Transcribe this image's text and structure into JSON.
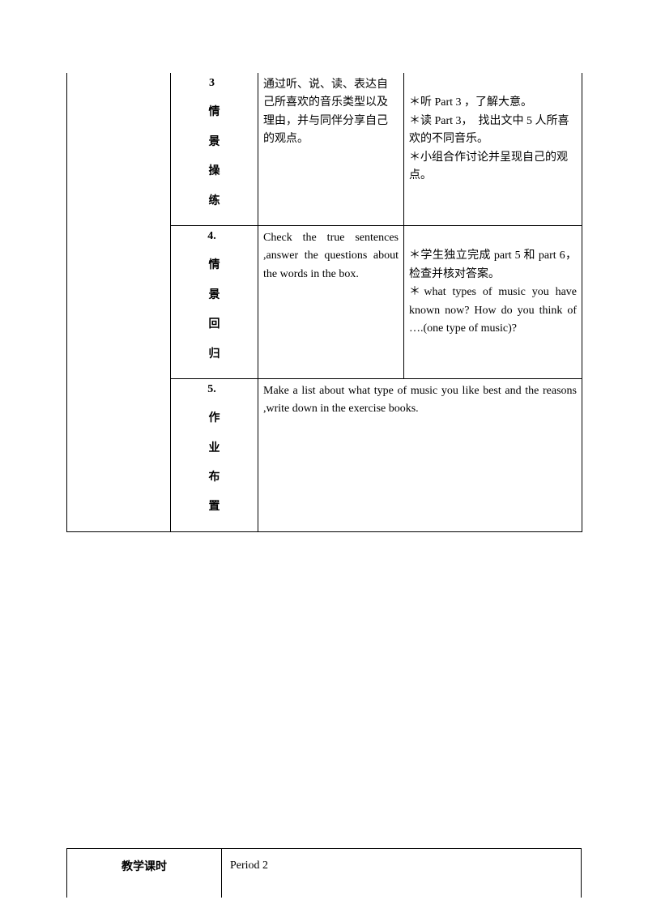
{
  "rows": [
    {
      "num": "3",
      "label": [
        "情",
        "景",
        "操",
        "练"
      ],
      "mid": "通过听、说、读、表达自己所喜欢的音乐类型以及理由，并与同伴分享自己的观点。",
      "right": "＊听 Part 3 ，了解大意。\n＊读 Part 3，　找出文中 5 人所喜欢的不同音乐。\n＊小组合作讨论并呈现自己的观点。"
    },
    {
      "num": "4.",
      "label": [
        "情",
        "景",
        "回",
        "归"
      ],
      "mid": "Check the true sentences ,answer the questions about the words in the box.",
      "right": "＊学生独立完成 part 5 和 part 6，检查并核对答案。\n＊what types of music you have known now? How do you think of ….(one type of music)?"
    },
    {
      "num": "5.",
      "label": [
        "作",
        "业",
        "布",
        "置"
      ],
      "merged": "Make a list about what type of music you like best and the reasons ,write down in the exercise books."
    }
  ],
  "lesson_label": "教学课时",
  "lesson_value": "Period 2"
}
